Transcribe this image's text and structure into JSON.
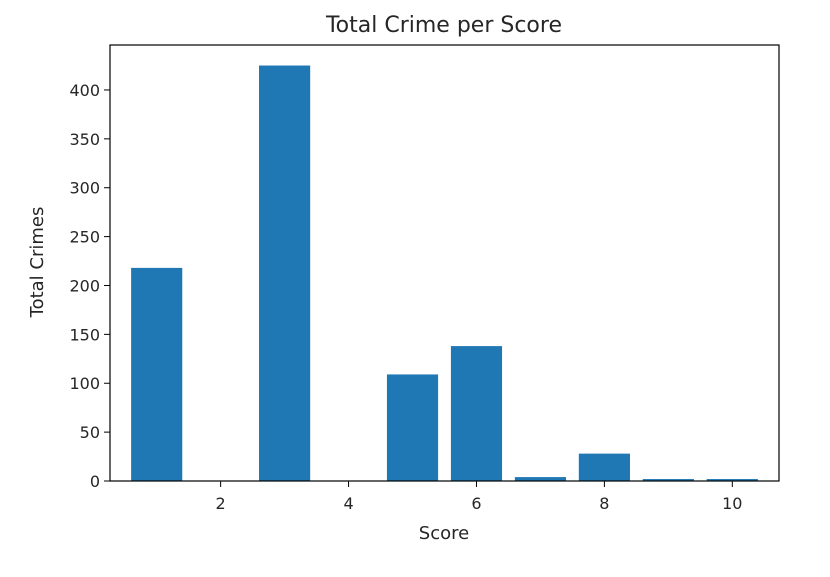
{
  "chart_data": {
    "type": "bar",
    "title": "Total Crime per Score",
    "xlabel": "Score",
    "ylabel": "Total Crimes",
    "x": [
      1,
      2,
      3,
      4,
      5,
      6,
      7,
      8,
      9,
      10
    ],
    "values": [
      218,
      0,
      425,
      0,
      109,
      138,
      4,
      28,
      2,
      2
    ],
    "xlim": [
      0.27,
      10.73
    ],
    "ylim": [
      0,
      446
    ],
    "xticks": [
      2,
      4,
      6,
      8,
      10
    ],
    "yticks": [
      0,
      50,
      100,
      150,
      200,
      250,
      300,
      350,
      400
    ],
    "bar_color": "#1f77b4",
    "grid": false,
    "legend": "none"
  }
}
